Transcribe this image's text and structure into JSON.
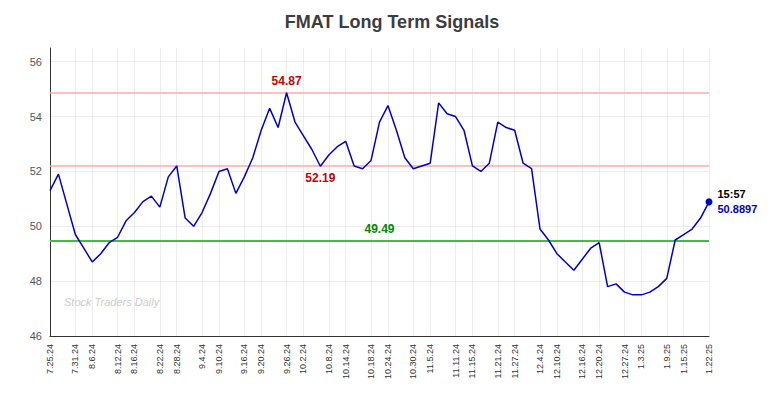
{
  "chart_data": {
    "type": "line",
    "title": "FMAT Long Term Signals",
    "color": "#0000cc",
    "categories": [
      "7.25.24",
      null,
      null,
      "7.31.24",
      null,
      "8.6.24",
      null,
      null,
      "8.12.24",
      null,
      "8.16.24",
      null,
      null,
      "8.22.24",
      null,
      "8.28.24",
      null,
      null,
      "9.4.24",
      null,
      "9.10.24",
      null,
      null,
      "9.16.24",
      null,
      "9.20.24",
      null,
      null,
      "9.26.24",
      null,
      "10.2.24",
      null,
      null,
      "10.8.24",
      null,
      "10.14.24",
      null,
      null,
      "10.18.24",
      null,
      "10.24.24",
      null,
      null,
      "10.30.24",
      null,
      "11.5.24",
      null,
      null,
      "11.11.24",
      null,
      "11.15.24",
      null,
      null,
      "11.21.24",
      null,
      "11.27.24",
      null,
      null,
      "12.4.24",
      null,
      "12.10.24",
      null,
      null,
      "12.16.24",
      null,
      "12.20.24",
      null,
      null,
      "12.27.24",
      null,
      "1.3.25",
      null,
      null,
      "1.9.25",
      null,
      "1.15.25",
      null,
      null,
      "1.22.25"
    ],
    "values": [
      51.3,
      51.9,
      50.8,
      49.7,
      49.2,
      48.7,
      49.0,
      49.4,
      49.6,
      50.2,
      50.5,
      50.9,
      51.1,
      50.7,
      51.8,
      52.2,
      50.3,
      50.0,
      50.5,
      51.2,
      52.0,
      52.1,
      51.2,
      51.8,
      52.5,
      53.5,
      54.3,
      53.6,
      54.87,
      53.8,
      53.3,
      52.8,
      52.19,
      52.6,
      52.9,
      53.1,
      52.2,
      52.1,
      52.4,
      53.8,
      54.4,
      53.5,
      52.5,
      52.1,
      52.2,
      52.3,
      54.5,
      54.1,
      54.0,
      53.5,
      52.2,
      52.0,
      52.3,
      53.8,
      53.6,
      53.5,
      52.3,
      52.1,
      49.9,
      49.5,
      49.0,
      48.7,
      48.4,
      48.8,
      49.2,
      49.4,
      47.8,
      47.9,
      47.6,
      47.5,
      47.5,
      47.6,
      47.8,
      48.1,
      49.5,
      49.7,
      49.9,
      50.3,
      50.8897
    ],
    "ylim": [
      46,
      56.5
    ],
    "yticks": [
      46,
      48,
      50,
      52,
      54,
      56
    ],
    "grid": true,
    "hlines": [
      {
        "value": 54.87,
        "color": "#ffaaaa"
      },
      {
        "value": 52.19,
        "color": "#ffaaaa"
      },
      {
        "value": 49.49,
        "color": "#44bb44",
        "label": "49.49",
        "label_color": "#008800"
      }
    ],
    "annotations": [
      {
        "text": "54.87",
        "y": 54.87,
        "color": "#cc0000"
      },
      {
        "text": "52.19",
        "y": 52.19,
        "color": "#cc0000"
      }
    ],
    "end_label": {
      "time": "15:57",
      "value": "50.8897",
      "color": "#0000cc"
    },
    "watermark": {
      "text": "Stock Traders Daily",
      "color": "#cccccc"
    }
  }
}
